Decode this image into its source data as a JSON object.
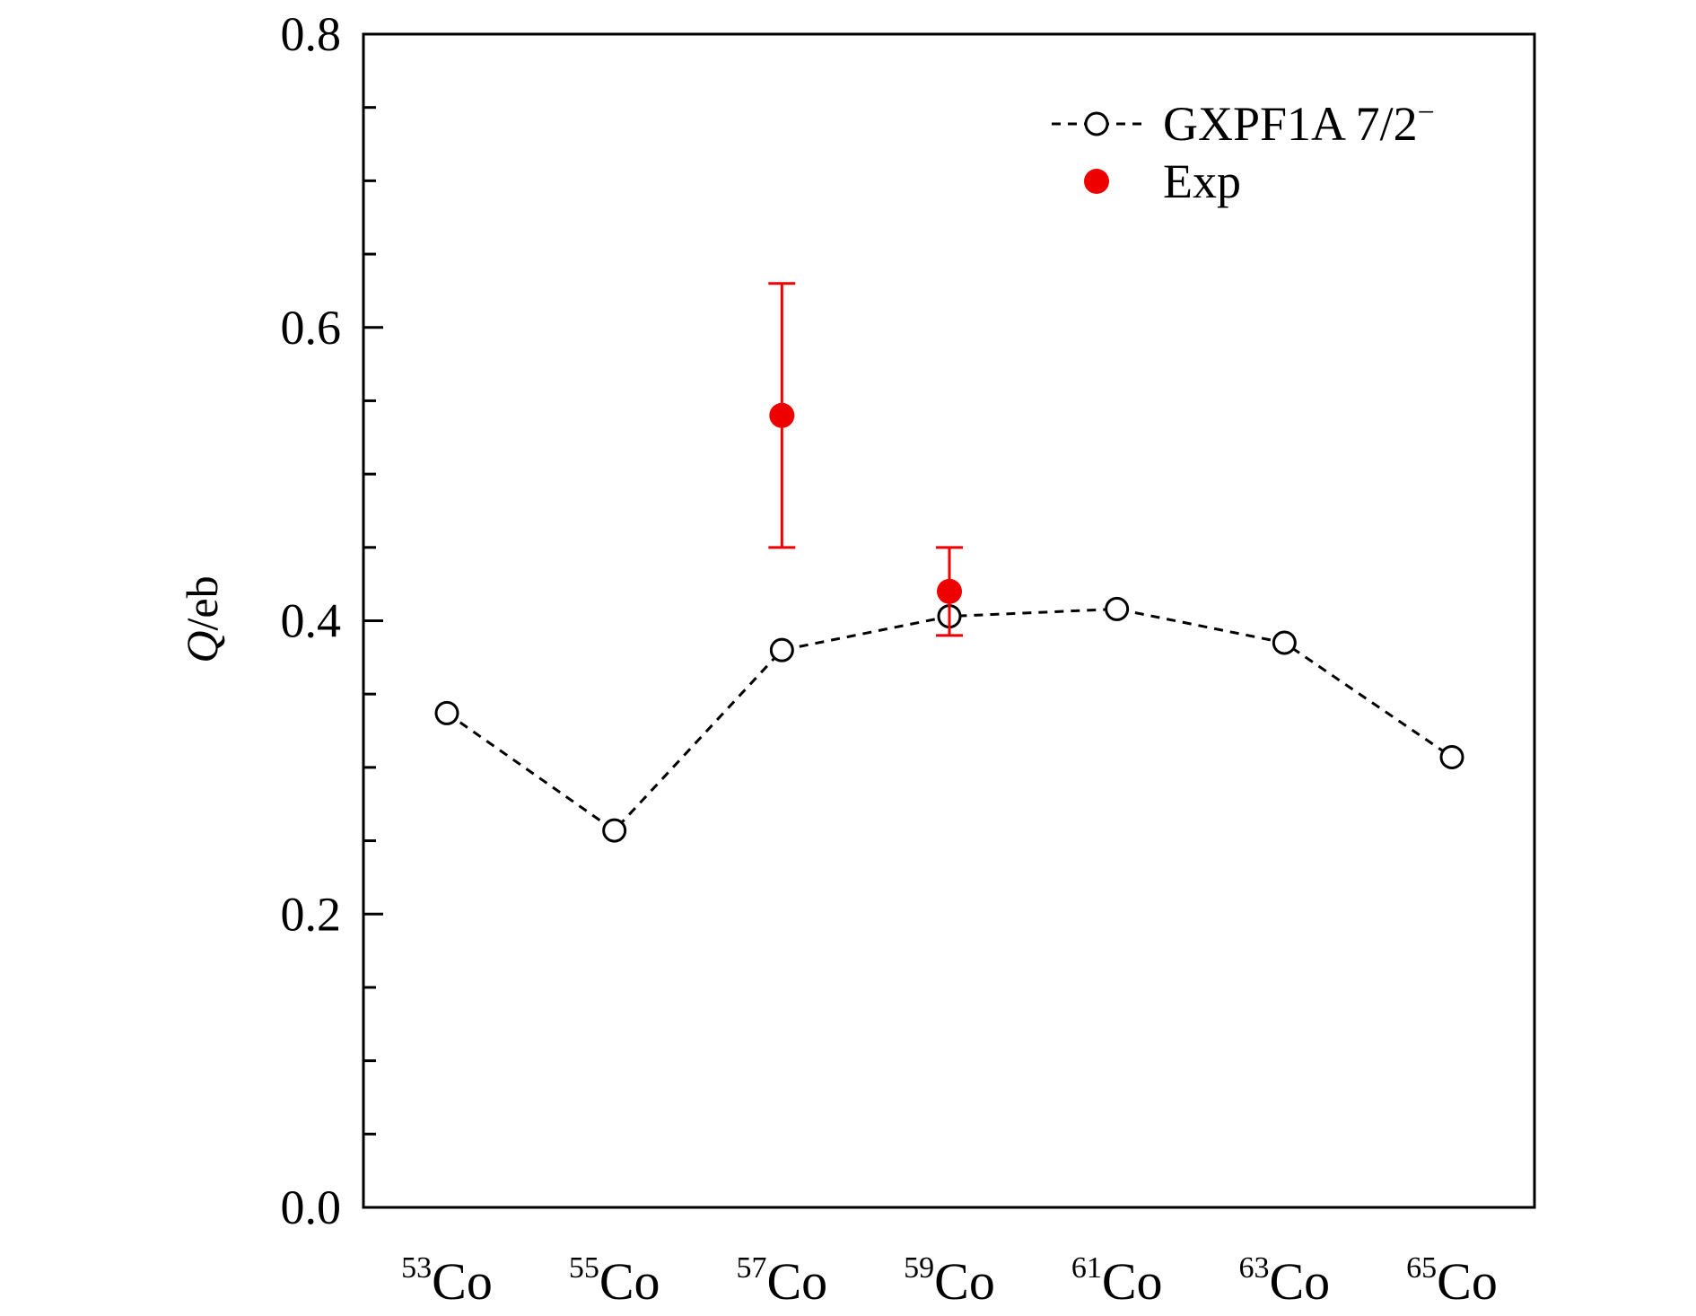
{
  "chart_data": {
    "type": "line",
    "categories": [
      {
        "sup": "53",
        "base": "Co"
      },
      {
        "sup": "55",
        "base": "Co"
      },
      {
        "sup": "57",
        "base": "Co"
      },
      {
        "sup": "59",
        "base": "Co"
      },
      {
        "sup": "61",
        "base": "Co"
      },
      {
        "sup": "63",
        "base": "Co"
      },
      {
        "sup": "65",
        "base": "Co"
      }
    ],
    "ylabel": {
      "italic": "Q",
      "rest": "/eb"
    },
    "ylim": [
      0.0,
      0.8
    ],
    "yticks": [
      "0.0",
      "0.2",
      "0.4",
      "0.6",
      "0.8"
    ],
    "ytick_values": [
      0.0,
      0.2,
      0.4,
      0.6,
      0.8
    ],
    "y_minor_step": 0.05,
    "legend_position": "top-right",
    "grid": false,
    "series": [
      {
        "name": "GXPF1A 7/2",
        "name_sup": "−",
        "style": "dashed line, open circle markers",
        "color": "#000000",
        "values": [
          0.337,
          0.257,
          0.38,
          0.403,
          0.408,
          0.385,
          0.307
        ]
      },
      {
        "name": "Exp",
        "style": "filled circle markers with error bars",
        "color": "#ee0000",
        "points": [
          {
            "category_index": 2,
            "value": 0.54,
            "err_low": 0.45,
            "err_high": 0.63
          },
          {
            "category_index": 3,
            "value": 0.42,
            "err_low": 0.39,
            "err_high": 0.45
          }
        ]
      }
    ]
  }
}
